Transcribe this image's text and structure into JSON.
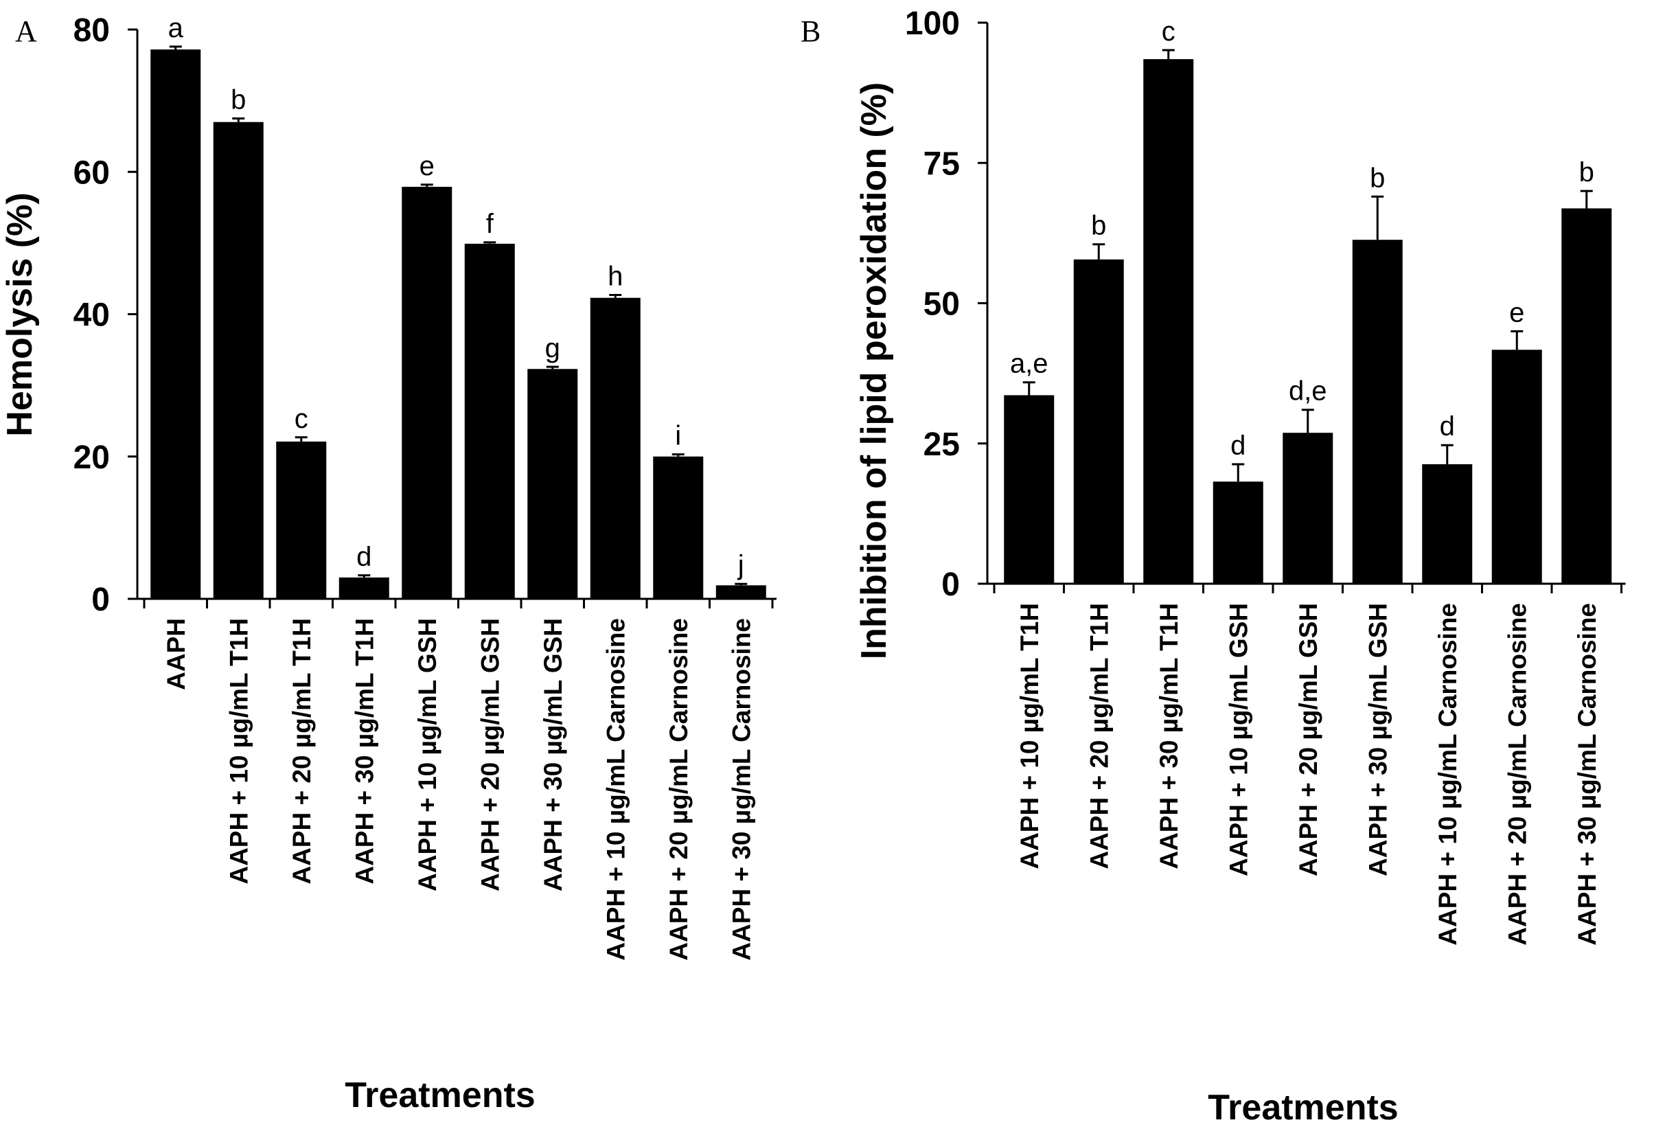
{
  "chart_data": [
    {
      "panel": "A",
      "type": "bar",
      "xlabel": "Treatments",
      "ylabel": "Hemolysis (%)",
      "ylim": [
        0,
        80
      ],
      "yticks": [
        0,
        20,
        40,
        60,
        80
      ],
      "categories": [
        "AAPH",
        "AAPH + 10 µg/mL T1H",
        "AAPH + 20 µg/mL T1H",
        "AAPH + 30 µg/mL T1H",
        "AAPH + 10 µg/mL GSH",
        "AAPH + 20 µg/mL GSH",
        "AAPH + 30 µg/mL GSH",
        "AAPH + 10 µg/mL Carnosine",
        "AAPH + 20 µg/mL Carnosine",
        "AAPH + 30 µg/mL Carnosine"
      ],
      "values": [
        77.2,
        67.0,
        22.1,
        3.0,
        57.9,
        49.9,
        32.3,
        42.3,
        20.0,
        1.9
      ],
      "errors": [
        0.4,
        0.5,
        0.6,
        0.3,
        0.3,
        0.2,
        0.3,
        0.4,
        0.3,
        0.2
      ],
      "letters": [
        "a",
        "b",
        "c",
        "d",
        "e",
        "f",
        "g",
        "h",
        "i",
        "j"
      ],
      "grid": false,
      "legend": "none"
    },
    {
      "panel": "B",
      "type": "bar",
      "xlabel": "Treatments",
      "ylabel": "Inhibition of lipid peroxidation  (%)",
      "ylim": [
        0,
        100
      ],
      "yticks": [
        0,
        25,
        50,
        75,
        100
      ],
      "categories": [
        "AAPH + 10 µg/mL T1H",
        "AAPH + 20 µg/mL T1H",
        "AAPH + 30 µg/mL T1H",
        "AAPH + 10 µg/mL GSH",
        "AAPH + 20 µg/mL GSH",
        "AAPH + 30 µg/mL GSH",
        "AAPH + 10 µg/mL Carnosine",
        "AAPH + 20 µg/mL Carnosine",
        "AAPH + 30 µg/mL Carnosine"
      ],
      "values": [
        33.6,
        57.8,
        93.5,
        18.2,
        26.9,
        61.3,
        21.3,
        41.7,
        66.9
      ],
      "errors": [
        2.3,
        2.7,
        1.6,
        3.1,
        4.1,
        7.7,
        3.4,
        3.3,
        3.1
      ],
      "letters": [
        "a,e",
        "b",
        "c",
        "d",
        "d,e",
        "b",
        "d",
        "e",
        "b"
      ],
      "grid": false,
      "legend": "none"
    }
  ]
}
